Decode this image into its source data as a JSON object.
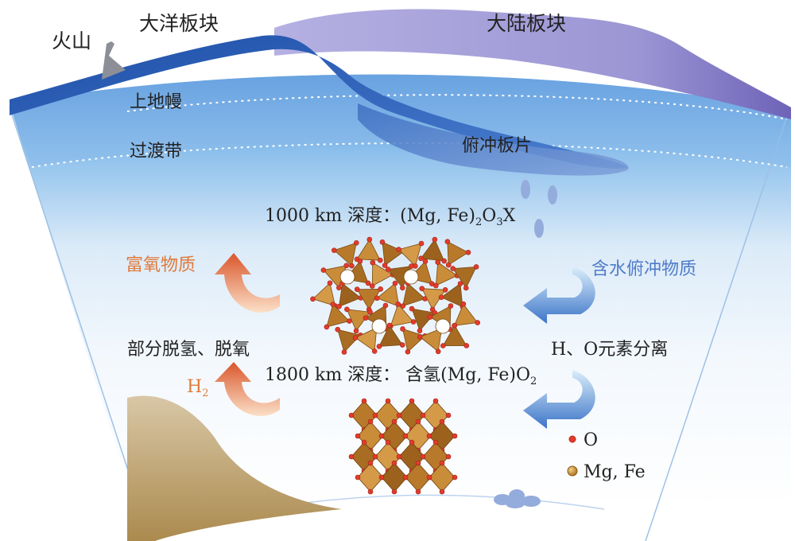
{
  "labels": {
    "volcano": "火山",
    "oceanic_plate": "大洋板块",
    "continental_plate": "大陆板块",
    "upper_mantle": "上地幔",
    "transition_zone": "过渡带",
    "subducting_slab": "俯冲板片",
    "depth1000_prefix": "1000 km 深度：(Mg, Fe)",
    "depth1000_sub1": "2",
    "depth1000_mid": "O",
    "depth1000_sub2": "3",
    "depth1000_suffix": "X",
    "depth1800_prefix": "1800 km 深度： 含氢(Mg, Fe)O",
    "depth1800_sub": "2",
    "oxygen_rich": "富氧物质",
    "hydrous_subducted": "含水俯冲物质",
    "partial_dehydro": "部分脱氢、脱氧",
    "h_o_separation": "H、O元素分离",
    "h2_main": "H",
    "h2_sub": "2"
  },
  "legend": {
    "o_label": "O",
    "mgfe_label": "Mg, Fe"
  },
  "colors": {
    "orange_text": "#e07a3c",
    "blue_text": "#4f7bc9",
    "oceanic_plate": "#2f5fb3",
    "continental_plate": "#a8a2d8",
    "crystal": "#b87a2a",
    "oxygen_atom": "#e23b2b",
    "core": "#c2a87a"
  }
}
